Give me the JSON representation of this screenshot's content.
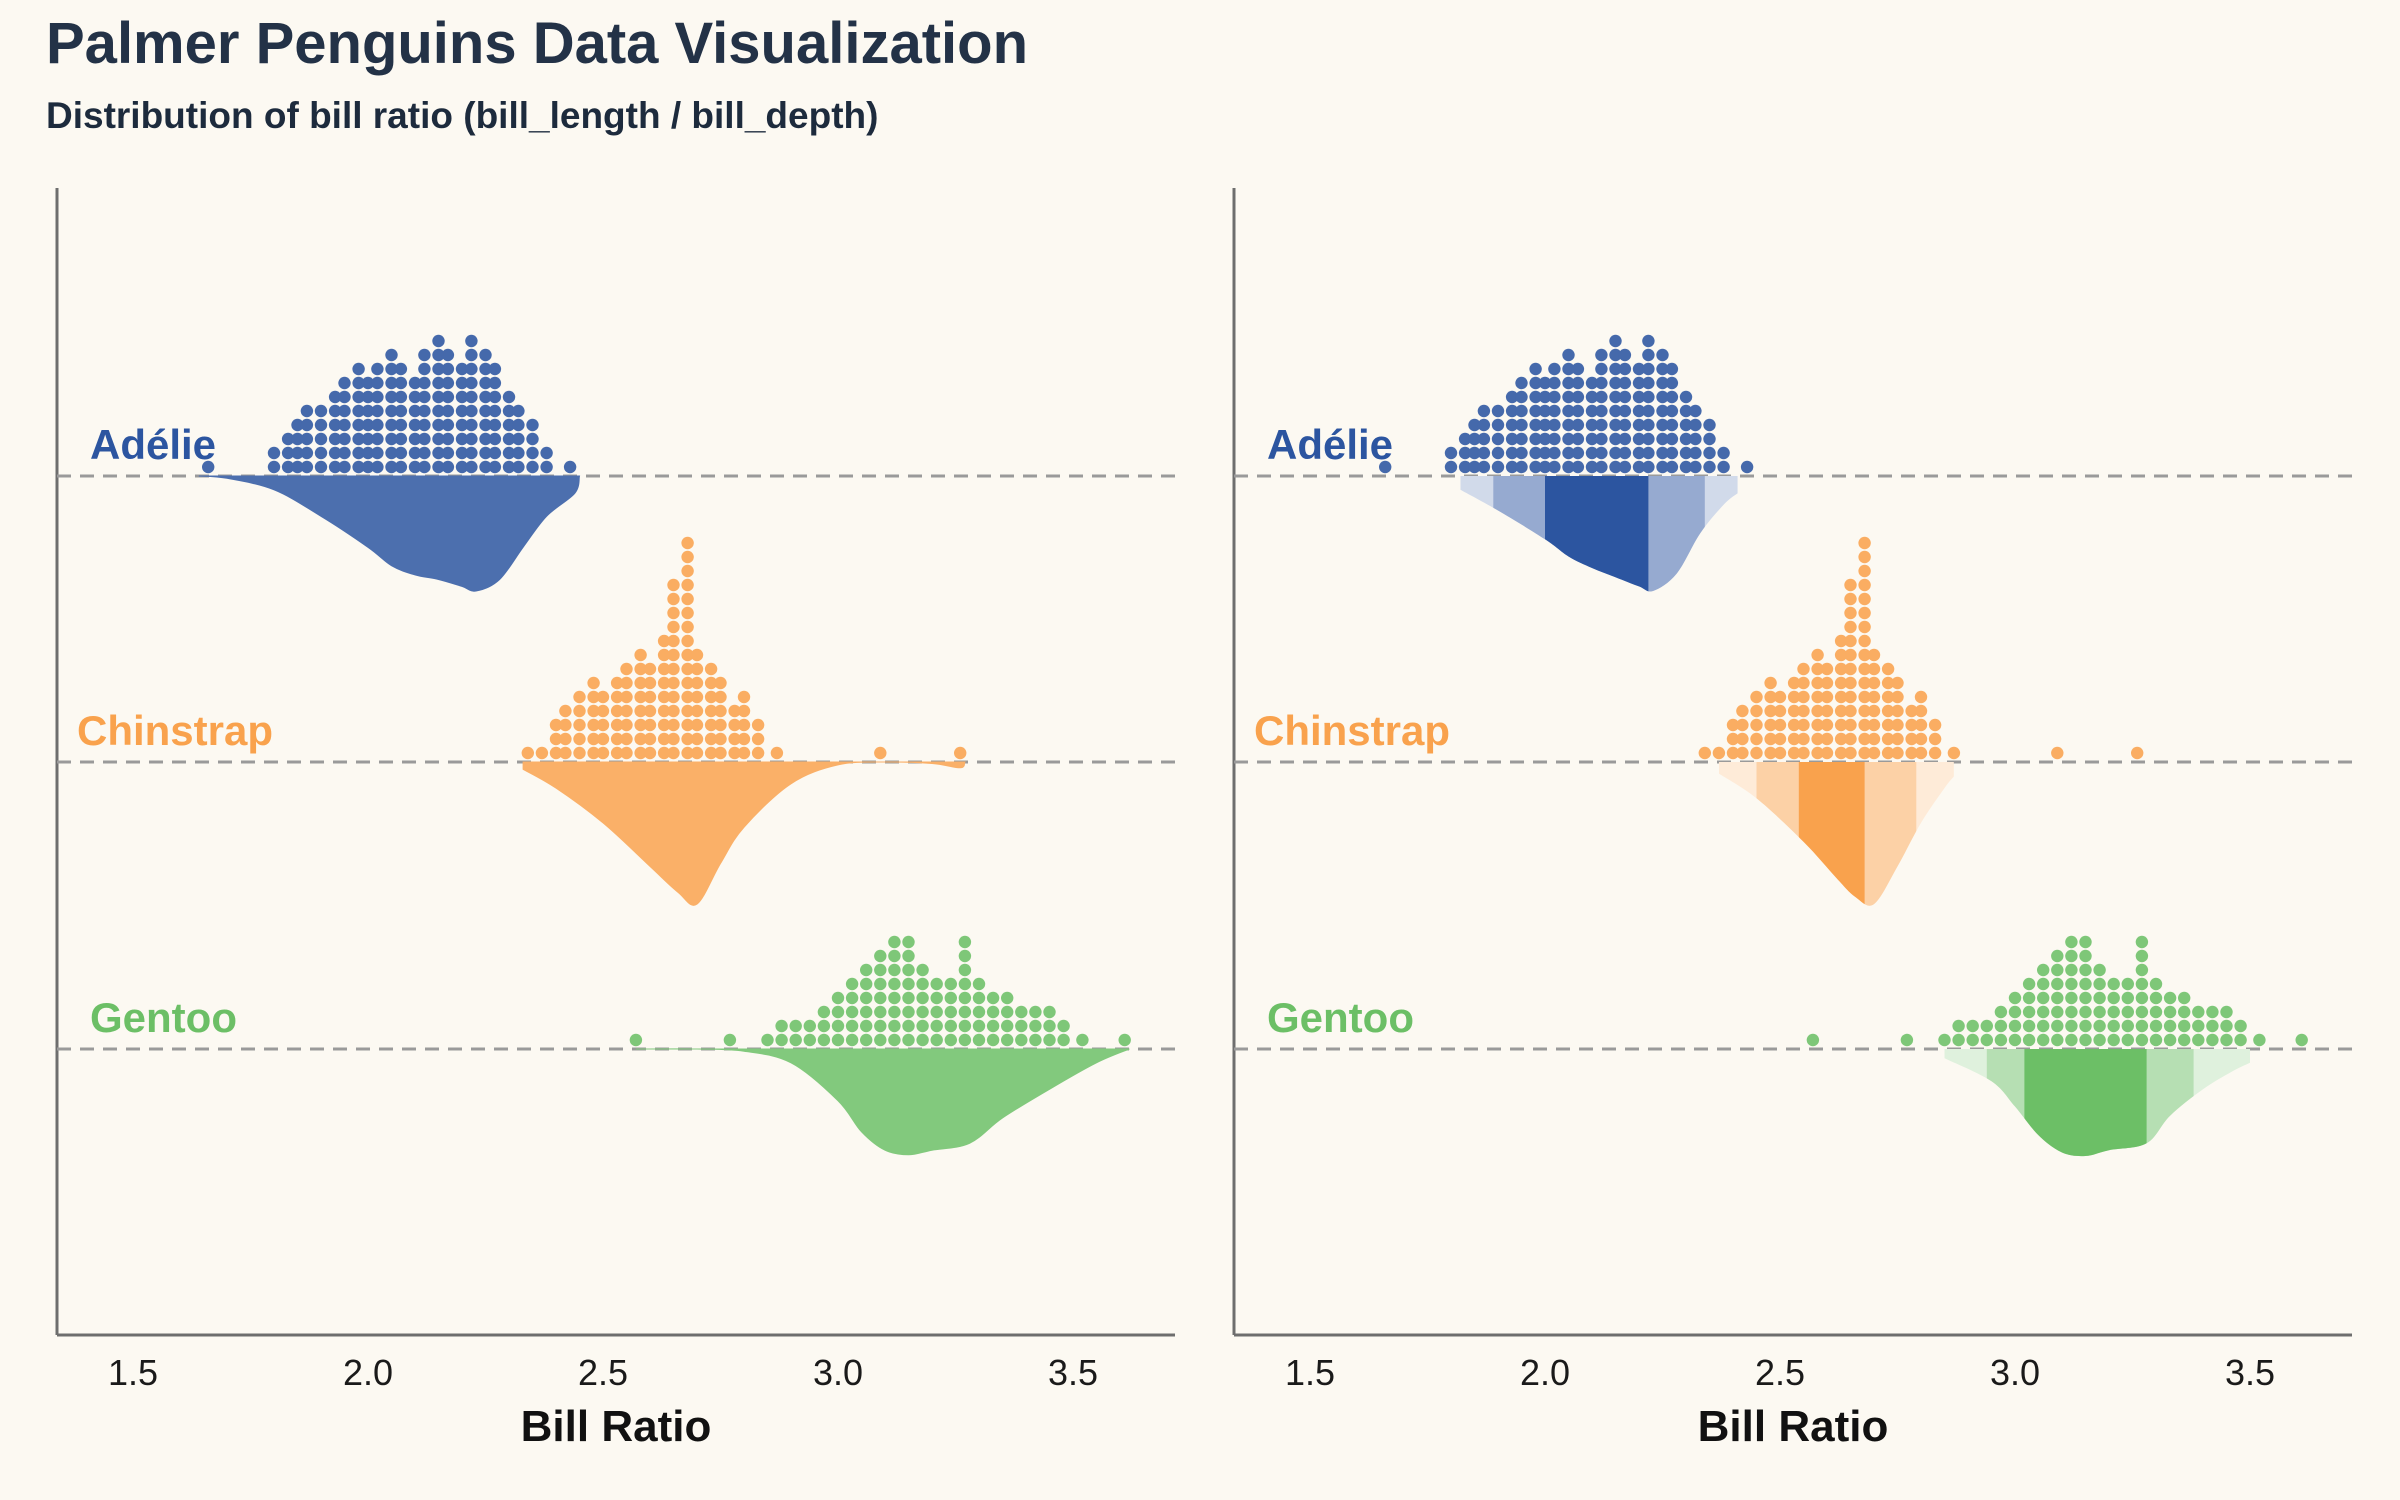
{
  "title": "Palmer Penguins Data Visualization",
  "subtitle": "Distribution of bill ratio (bill_length / bill_depth)",
  "colors": {
    "adelie": "#2c55a0",
    "chinstrap": "#f9a24d",
    "gentoo": "#6cbf66",
    "baseline": "#9a9a9a",
    "axis": "#6e6e6e",
    "background": "#fcf9f2"
  },
  "chart_data": [
    {
      "type": "raincloud",
      "panel": "left",
      "style": "dots above, density half-violin below",
      "xlabel": "Bill Ratio",
      "ylabel": "",
      "xlim": [
        1.35,
        3.72
      ],
      "xticks": [
        "1.5",
        "2.0",
        "2.5",
        "3.0",
        "3.5"
      ],
      "xtick_values": [
        1.5,
        2.0,
        2.5,
        3.0,
        3.5
      ],
      "grid": false,
      "series": [
        {
          "name": "Adélie",
          "color_key": "adelie",
          "dots": [
            [
              1.66,
              1
            ],
            [
              1.8,
              2
            ],
            [
              1.83,
              3
            ],
            [
              1.85,
              4
            ],
            [
              1.87,
              5
            ],
            [
              1.9,
              5
            ],
            [
              1.93,
              6
            ],
            [
              1.95,
              7
            ],
            [
              1.98,
              8
            ],
            [
              2.0,
              7
            ],
            [
              2.02,
              8
            ],
            [
              2.05,
              9
            ],
            [
              2.07,
              8
            ],
            [
              2.1,
              7
            ],
            [
              2.12,
              9
            ],
            [
              2.15,
              10
            ],
            [
              2.17,
              9
            ],
            [
              2.2,
              8
            ],
            [
              2.22,
              10
            ],
            [
              2.25,
              9
            ],
            [
              2.27,
              8
            ],
            [
              2.3,
              6
            ],
            [
              2.32,
              5
            ],
            [
              2.35,
              4
            ],
            [
              2.38,
              2
            ],
            [
              2.43,
              1
            ]
          ],
          "density": [
            [
              1.64,
              0.0
            ],
            [
              1.7,
              0.02
            ],
            [
              1.8,
              0.12
            ],
            [
              1.9,
              0.35
            ],
            [
              2.0,
              0.62
            ],
            [
              2.05,
              0.78
            ],
            [
              2.1,
              0.86
            ],
            [
              2.15,
              0.9
            ],
            [
              2.2,
              0.96
            ],
            [
              2.23,
              1.0
            ],
            [
              2.28,
              0.9
            ],
            [
              2.33,
              0.62
            ],
            [
              2.38,
              0.35
            ],
            [
              2.44,
              0.15
            ],
            [
              2.45,
              0.0
            ]
          ]
        },
        {
          "name": "Chinstrap",
          "color_key": "chinstrap",
          "dots": [
            [
              2.34,
              1
            ],
            [
              2.37,
              1
            ],
            [
              2.4,
              3
            ],
            [
              2.42,
              4
            ],
            [
              2.45,
              5
            ],
            [
              2.48,
              6
            ],
            [
              2.5,
              5
            ],
            [
              2.53,
              6
            ],
            [
              2.55,
              7
            ],
            [
              2.58,
              8
            ],
            [
              2.6,
              7
            ],
            [
              2.63,
              9
            ],
            [
              2.65,
              13
            ],
            [
              2.68,
              16
            ],
            [
              2.7,
              8
            ],
            [
              2.73,
              7
            ],
            [
              2.75,
              6
            ],
            [
              2.78,
              4
            ],
            [
              2.8,
              5
            ],
            [
              2.83,
              3
            ],
            [
              2.87,
              1
            ],
            [
              3.09,
              1
            ],
            [
              3.26,
              1
            ]
          ],
          "density": [
            [
              2.33,
              0.05
            ],
            [
              2.4,
              0.18
            ],
            [
              2.5,
              0.42
            ],
            [
              2.6,
              0.72
            ],
            [
              2.66,
              0.9
            ],
            [
              2.7,
              0.98
            ],
            [
              2.75,
              0.7
            ],
            [
              2.8,
              0.45
            ],
            [
              2.9,
              0.15
            ],
            [
              3.0,
              0.02
            ],
            [
              3.1,
              0.0
            ],
            [
              3.2,
              0.01
            ],
            [
              3.26,
              0.04
            ],
            [
              3.27,
              0.0
            ]
          ]
        },
        {
          "name": "Gentoo",
          "color_key": "gentoo",
          "dots": [
            [
              2.57,
              1
            ],
            [
              2.77,
              1
            ],
            [
              2.85,
              1
            ],
            [
              2.88,
              2
            ],
            [
              2.91,
              2
            ],
            [
              2.94,
              2
            ],
            [
              2.97,
              3
            ],
            [
              3.0,
              4
            ],
            [
              3.03,
              5
            ],
            [
              3.06,
              6
            ],
            [
              3.09,
              7
            ],
            [
              3.12,
              8
            ],
            [
              3.15,
              8
            ],
            [
              3.18,
              6
            ],
            [
              3.21,
              5
            ],
            [
              3.24,
              5
            ],
            [
              3.27,
              8
            ],
            [
              3.3,
              5
            ],
            [
              3.33,
              4
            ],
            [
              3.36,
              4
            ],
            [
              3.39,
              3
            ],
            [
              3.42,
              3
            ],
            [
              3.45,
              3
            ],
            [
              3.48,
              2
            ],
            [
              3.52,
              1
            ],
            [
              3.61,
              1
            ]
          ],
          "density": [
            [
              2.57,
              0.0
            ],
            [
              2.7,
              0.0
            ],
            [
              2.8,
              0.02
            ],
            [
              2.9,
              0.12
            ],
            [
              3.0,
              0.45
            ],
            [
              3.05,
              0.72
            ],
            [
              3.1,
              0.88
            ],
            [
              3.15,
              0.92
            ],
            [
              3.2,
              0.88
            ],
            [
              3.28,
              0.82
            ],
            [
              3.35,
              0.6
            ],
            [
              3.45,
              0.35
            ],
            [
              3.55,
              0.12
            ],
            [
              3.62,
              0.0
            ]
          ]
        }
      ]
    },
    {
      "type": "raincloud",
      "panel": "right",
      "style": "dots above, interval bands below",
      "xlabel": "Bill Ratio",
      "ylabel": "",
      "xlim": [
        1.35,
        3.72
      ],
      "xticks": [
        "1.5",
        "2.0",
        "2.5",
        "3.0",
        "3.5"
      ],
      "xtick_values": [
        1.5,
        2.0,
        2.5,
        3.0,
        3.5
      ],
      "grid": false,
      "series": [
        {
          "name": "Adélie",
          "color_key": "adelie",
          "dots": [
            [
              1.66,
              1
            ],
            [
              1.8,
              2
            ],
            [
              1.83,
              3
            ],
            [
              1.85,
              4
            ],
            [
              1.87,
              5
            ],
            [
              1.9,
              5
            ],
            [
              1.93,
              6
            ],
            [
              1.95,
              7
            ],
            [
              1.98,
              8
            ],
            [
              2.0,
              7
            ],
            [
              2.02,
              8
            ],
            [
              2.05,
              9
            ],
            [
              2.07,
              8
            ],
            [
              2.1,
              7
            ],
            [
              2.12,
              9
            ],
            [
              2.15,
              10
            ],
            [
              2.17,
              9
            ],
            [
              2.2,
              8
            ],
            [
              2.22,
              10
            ],
            [
              2.25,
              9
            ],
            [
              2.27,
              8
            ],
            [
              2.3,
              6
            ],
            [
              2.32,
              5
            ],
            [
              2.35,
              4
            ],
            [
              2.38,
              2
            ],
            [
              2.43,
              1
            ]
          ],
          "density": [
            [
              1.82,
              0.12
            ],
            [
              1.9,
              0.3
            ],
            [
              2.0,
              0.55
            ],
            [
              2.05,
              0.7
            ],
            [
              2.1,
              0.8
            ],
            [
              2.15,
              0.88
            ],
            [
              2.2,
              0.96
            ],
            [
              2.23,
              1.0
            ],
            [
              2.28,
              0.85
            ],
            [
              2.33,
              0.5
            ],
            [
              2.38,
              0.25
            ],
            [
              2.41,
              0.15
            ]
          ],
          "bands": [
            [
              1.82,
              2.41
            ],
            [
              1.89,
              2.34
            ],
            [
              2.0,
              2.22
            ]
          ]
        },
        {
          "name": "Chinstrap",
          "color_key": "chinstrap",
          "dots": [
            [
              2.34,
              1
            ],
            [
              2.37,
              1
            ],
            [
              2.4,
              3
            ],
            [
              2.42,
              4
            ],
            [
              2.45,
              5
            ],
            [
              2.48,
              6
            ],
            [
              2.5,
              5
            ],
            [
              2.53,
              6
            ],
            [
              2.55,
              7
            ],
            [
              2.58,
              8
            ],
            [
              2.6,
              7
            ],
            [
              2.63,
              9
            ],
            [
              2.65,
              13
            ],
            [
              2.68,
              16
            ],
            [
              2.7,
              8
            ],
            [
              2.73,
              7
            ],
            [
              2.75,
              6
            ],
            [
              2.78,
              4
            ],
            [
              2.8,
              5
            ],
            [
              2.83,
              3
            ],
            [
              2.87,
              1
            ],
            [
              3.09,
              1
            ],
            [
              3.26,
              1
            ]
          ],
          "density": [
            [
              2.37,
              0.08
            ],
            [
              2.45,
              0.25
            ],
            [
              2.55,
              0.55
            ],
            [
              2.62,
              0.8
            ],
            [
              2.66,
              0.93
            ],
            [
              2.7,
              0.98
            ],
            [
              2.75,
              0.72
            ],
            [
              2.8,
              0.42
            ],
            [
              2.85,
              0.18
            ],
            [
              2.87,
              0.1
            ]
          ],
          "bands": [
            [
              2.37,
              2.87
            ],
            [
              2.45,
              2.79
            ],
            [
              2.54,
              2.68
            ]
          ]
        },
        {
          "name": "Gentoo",
          "color_key": "gentoo",
          "dots": [
            [
              2.57,
              1
            ],
            [
              2.77,
              1
            ],
            [
              2.85,
              1
            ],
            [
              2.88,
              2
            ],
            [
              2.91,
              2
            ],
            [
              2.94,
              2
            ],
            [
              2.97,
              3
            ],
            [
              3.0,
              4
            ],
            [
              3.03,
              5
            ],
            [
              3.06,
              6
            ],
            [
              3.09,
              7
            ],
            [
              3.12,
              8
            ],
            [
              3.15,
              8
            ],
            [
              3.18,
              6
            ],
            [
              3.21,
              5
            ],
            [
              3.24,
              5
            ],
            [
              3.27,
              8
            ],
            [
              3.3,
              5
            ],
            [
              3.33,
              4
            ],
            [
              3.36,
              4
            ],
            [
              3.39,
              3
            ],
            [
              3.42,
              3
            ],
            [
              3.45,
              3
            ],
            [
              3.48,
              2
            ],
            [
              3.52,
              1
            ],
            [
              3.61,
              1
            ]
          ],
          "density": [
            [
              2.85,
              0.08
            ],
            [
              2.95,
              0.28
            ],
            [
              3.0,
              0.5
            ],
            [
              3.05,
              0.75
            ],
            [
              3.1,
              0.9
            ],
            [
              3.15,
              0.93
            ],
            [
              3.2,
              0.88
            ],
            [
              3.28,
              0.82
            ],
            [
              3.33,
              0.58
            ],
            [
              3.4,
              0.35
            ],
            [
              3.46,
              0.2
            ],
            [
              3.5,
              0.12
            ]
          ],
          "bands": [
            [
              2.85,
              3.5
            ],
            [
              2.94,
              3.38
            ],
            [
              3.02,
              3.28
            ]
          ]
        }
      ]
    }
  ]
}
